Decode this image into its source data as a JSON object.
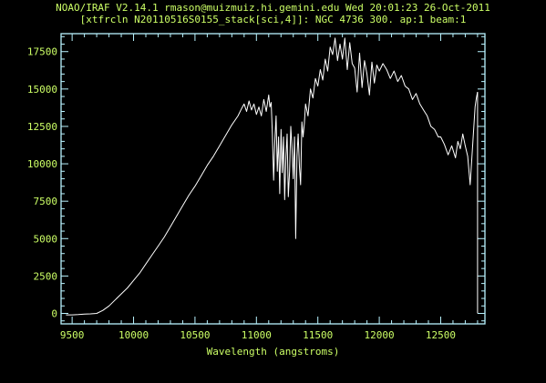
{
  "header": {
    "line1": "NOAO/IRAF V2.14.1 rmason@muizmuiz.hi.gemini.edu Wed 20:01:23 26-Oct-2011",
    "line2": "[xtfrcln N20110516S0155_stack[sci,4]]: NGC 4736 300. ap:1 beam:1"
  },
  "colors": {
    "background": "#000000",
    "text": "#ccff66",
    "axes": "#b9f3ff",
    "data": "#ffffff"
  },
  "chart_data": {
    "type": "line",
    "title": "",
    "xlabel": "Wavelength (angstroms)",
    "ylabel": "",
    "xlim": [
      9410,
      12860
    ],
    "ylim": [
      -700,
      18700
    ],
    "xticks": [
      9500,
      10000,
      10500,
      11000,
      11500,
      12000,
      12500
    ],
    "yticks": [
      0,
      2500,
      5000,
      7500,
      10000,
      12500,
      15000,
      17500
    ],
    "grid": false,
    "series": [
      {
        "name": "",
        "x": [
          9450,
          9500,
          9550,
          9600,
          9650,
          9700,
          9750,
          9800,
          9850,
          9900,
          9950,
          10000,
          10050,
          10100,
          10150,
          10200,
          10250,
          10300,
          10350,
          10400,
          10450,
          10500,
          10550,
          10600,
          10650,
          10700,
          10750,
          10800,
          10850,
          10880,
          10900,
          10920,
          10940,
          10960,
          10980,
          11000,
          11020,
          11040,
          11060,
          11080,
          11100,
          11110,
          11120,
          11130,
          11140,
          11150,
          11160,
          11170,
          11180,
          11190,
          11200,
          11210,
          11220,
          11230,
          11240,
          11250,
          11260,
          11270,
          11280,
          11290,
          11300,
          11310,
          11320,
          11330,
          11340,
          11350,
          11360,
          11370,
          11380,
          11390,
          11400,
          11420,
          11440,
          11460,
          11480,
          11500,
          11520,
          11540,
          11560,
          11580,
          11600,
          11620,
          11640,
          11660,
          11680,
          11700,
          11720,
          11740,
          11760,
          11780,
          11800,
          11820,
          11840,
          11860,
          11880,
          11900,
          11920,
          11940,
          11960,
          11980,
          12000,
          12030,
          12060,
          12090,
          12120,
          12150,
          12180,
          12210,
          12240,
          12270,
          12300,
          12330,
          12360,
          12390,
          12420,
          12450,
          12480,
          12500,
          12530,
          12560,
          12590,
          12620,
          12640,
          12660,
          12680,
          12700,
          12720,
          12740,
          12760,
          12780,
          12790,
          12800
        ],
        "y": [
          -100,
          -100,
          -80,
          -50,
          -30,
          0,
          200,
          500,
          900,
          1300,
          1700,
          2200,
          2700,
          3300,
          3900,
          4500,
          5100,
          5800,
          6500,
          7200,
          7900,
          8500,
          9200,
          9900,
          10500,
          11200,
          11900,
          12600,
          13200,
          13700,
          14000,
          13500,
          14200,
          13600,
          14000,
          13300,
          13800,
          13200,
          14300,
          13500,
          14600,
          13800,
          14100,
          12000,
          8900,
          11500,
          13200,
          9500,
          11800,
          8000,
          12300,
          9400,
          11800,
          7600,
          10500,
          12000,
          7800,
          9500,
          12500,
          11000,
          9000,
          11800,
          5000,
          10500,
          12000,
          9800,
          8600,
          12800,
          11800,
          12700,
          14000,
          13200,
          15000,
          14400,
          15700,
          15200,
          16300,
          15600,
          17000,
          16200,
          17800,
          17300,
          18400,
          16900,
          18000,
          17000,
          18400,
          16300,
          18100,
          16700,
          16400,
          14800,
          17400,
          15100,
          16900,
          16000,
          14600,
          16800,
          15400,
          16600,
          16200,
          16700,
          16300,
          15700,
          16200,
          15500,
          15900,
          15200,
          15000,
          14300,
          14700,
          14000,
          13600,
          13200,
          12500,
          12300,
          11800,
          11800,
          11300,
          10600,
          11200,
          10400,
          11500,
          11000,
          12000,
          11200,
          10500,
          8600,
          11200,
          13800,
          14400,
          14800
        ]
      }
    ]
  }
}
